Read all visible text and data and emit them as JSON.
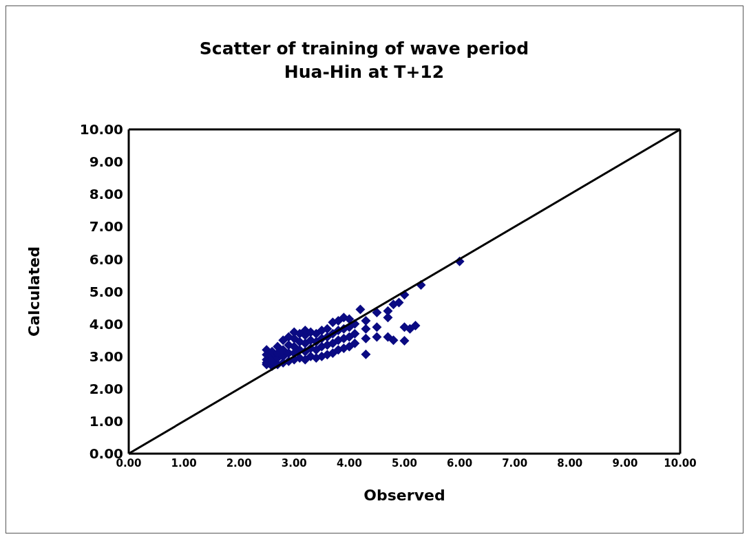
{
  "chart_data": {
    "type": "scatter",
    "title": "Scatter of training of wave period\nHua-Hin  at T+12",
    "xlabel": "Observed",
    "ylabel": "Calculated",
    "xlim": [
      0,
      10
    ],
    "ylim": [
      0,
      10
    ],
    "xticks": [
      {
        "value": 0,
        "label": "0.00"
      },
      {
        "value": 1,
        "label": "1.00"
      },
      {
        "value": 2,
        "label": "2.00"
      },
      {
        "value": 3,
        "label": "3.00"
      },
      {
        "value": 4,
        "label": "4.00"
      },
      {
        "value": 5,
        "label": "5.00"
      },
      {
        "value": 6,
        "label": "6.00"
      },
      {
        "value": 7,
        "label": "7.00"
      },
      {
        "value": 8,
        "label": "8.00"
      },
      {
        "value": 9,
        "label": "9.00"
      },
      {
        "value": 10,
        "label": "10.00"
      }
    ],
    "yticks": [
      {
        "value": 0,
        "label": "0.00"
      },
      {
        "value": 1,
        "label": "1.00"
      },
      {
        "value": 2,
        "label": "2.00"
      },
      {
        "value": 3,
        "label": "3.00"
      },
      {
        "value": 4,
        "label": "4.00"
      },
      {
        "value": 5,
        "label": "5.00"
      },
      {
        "value": 6,
        "label": "6.00"
      },
      {
        "value": 7,
        "label": "7.00"
      },
      {
        "value": 8,
        "label": "8.00"
      },
      {
        "value": 9,
        "label": "9.00"
      },
      {
        "value": 10,
        "label": "10.00"
      }
    ],
    "marker": "diamond",
    "series": [
      {
        "color": "#0a0a82",
        "x": [
          2.5,
          2.5,
          2.5,
          2.5,
          2.5,
          2.6,
          2.6,
          2.6,
          2.6,
          2.7,
          2.7,
          2.7,
          2.7,
          2.8,
          2.8,
          2.8,
          2.8,
          2.9,
          2.9,
          2.9,
          2.9,
          3.0,
          3.0,
          3.0,
          3.0,
          3.0,
          3.1,
          3.1,
          3.1,
          3.1,
          3.2,
          3.2,
          3.2,
          3.2,
          3.2,
          3.3,
          3.3,
          3.3,
          3.3,
          3.4,
          3.4,
          3.4,
          3.4,
          3.5,
          3.5,
          3.5,
          3.5,
          3.6,
          3.6,
          3.6,
          3.6,
          3.7,
          3.7,
          3.7,
          3.7,
          3.8,
          3.8,
          3.8,
          3.8,
          3.9,
          3.9,
          3.9,
          3.9,
          4.0,
          4.0,
          4.0,
          4.0,
          4.1,
          4.1,
          4.1,
          4.3,
          4.3,
          4.3,
          4.5,
          4.5,
          4.7,
          4.7,
          4.2,
          4.5,
          4.7,
          4.8,
          4.9,
          5.0,
          4.8,
          5.0,
          5.1,
          5.2,
          4.3,
          5.0,
          5.3,
          6.0
        ],
        "values": [
          2.75,
          2.9,
          3.05,
          3.2,
          2.8,
          2.7,
          3.0,
          3.15,
          2.85,
          2.75,
          2.95,
          3.3,
          3.1,
          2.8,
          3.0,
          3.5,
          3.2,
          2.85,
          3.1,
          3.6,
          3.35,
          2.9,
          3.1,
          3.3,
          3.55,
          3.75,
          2.95,
          3.2,
          3.45,
          3.7,
          2.9,
          3.15,
          3.4,
          3.65,
          3.8,
          3.0,
          3.25,
          3.5,
          3.75,
          2.95,
          3.2,
          3.45,
          3.7,
          3.0,
          3.3,
          3.55,
          3.8,
          3.05,
          3.35,
          3.6,
          3.85,
          3.1,
          3.4,
          3.7,
          4.05,
          3.2,
          3.5,
          3.8,
          4.1,
          3.25,
          3.55,
          3.85,
          4.2,
          3.3,
          3.6,
          3.9,
          4.15,
          3.4,
          3.7,
          4.0,
          3.55,
          3.85,
          4.1,
          3.6,
          3.9,
          3.6,
          4.2,
          4.45,
          4.35,
          4.4,
          4.6,
          4.66,
          3.48,
          3.5,
          4.9,
          3.85,
          3.95,
          3.06,
          3.9,
          5.2,
          5.93
        ]
      },
      {
        "type": "line",
        "marker": "none",
        "color": "#000000",
        "x": [
          0,
          10
        ],
        "values": [
          0,
          10
        ]
      }
    ]
  }
}
